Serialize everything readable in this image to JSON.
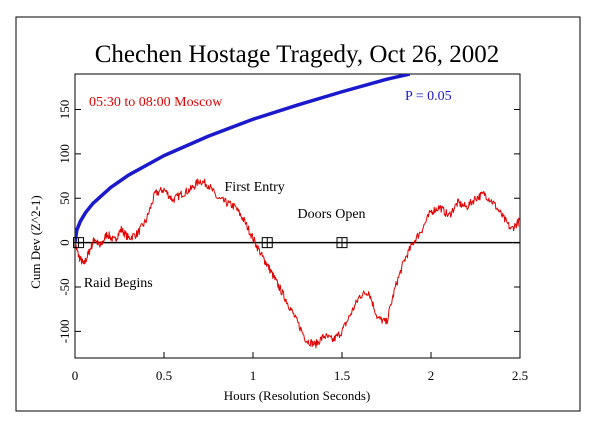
{
  "chart_data": {
    "type": "line",
    "title": "Chechen Hostage Tragedy, Oct 26, 2002",
    "xlabel": "Hours (Resolution Seconds)",
    "ylabel": "Cum Dev (Z^2-1)",
    "xlim": [
      0,
      2.5
    ],
    "ylim": [
      -130,
      190
    ],
    "x_ticks": [
      0,
      0.5,
      1,
      1.5,
      2,
      2.5
    ],
    "x_tick_labels": [
      "0",
      "0.5",
      "1",
      "1.5",
      "2",
      "2.5"
    ],
    "y_ticks": [
      -100,
      -50,
      0,
      50,
      100,
      150
    ],
    "y_tick_labels": [
      "-100",
      "-50",
      "0",
      "50",
      "100",
      "150"
    ],
    "grid": false,
    "subtitle_text": "05:30 to 08:00 Moscow",
    "significance_label": "P = 0.05",
    "series": [
      {
        "color": "#e00000",
        "x": [
          0,
          0.02,
          0.05,
          0.08,
          0.11,
          0.14,
          0.18,
          0.22,
          0.26,
          0.3,
          0.35,
          0.4,
          0.45,
          0.5,
          0.55,
          0.6,
          0.65,
          0.7,
          0.75,
          0.8,
          0.85,
          0.9,
          0.95,
          1.0,
          1.05,
          1.08,
          1.12,
          1.16,
          1.2,
          1.25,
          1.3,
          1.35,
          1.4,
          1.45,
          1.5,
          1.55,
          1.6,
          1.65,
          1.7,
          1.75,
          1.8,
          1.85,
          1.9,
          1.95,
          2.0,
          2.05,
          2.1,
          2.15,
          2.2,
          2.25,
          2.3,
          2.35,
          2.4,
          2.45,
          2.5
        ],
        "y": [
          0,
          -15,
          -25,
          -10,
          5,
          -5,
          10,
          2,
          15,
          5,
          10,
          25,
          55,
          60,
          48,
          55,
          60,
          70,
          65,
          50,
          45,
          40,
          25,
          5,
          -15,
          -25,
          -40,
          -55,
          -70,
          -90,
          -110,
          -115,
          -105,
          -110,
          -100,
          -80,
          -60,
          -55,
          -85,
          -90,
          -50,
          -20,
          0,
          15,
          35,
          40,
          30,
          45,
          40,
          50,
          55,
          45,
          30,
          15,
          25
        ]
      }
    ],
    "significance_curve": {
      "color": "#1a1acc",
      "x": [
        0,
        0.01,
        0.03,
        0.06,
        0.1,
        0.2,
        0.3,
        0.5,
        0.75,
        1.0,
        1.25,
        1.5,
        1.75,
        1.88
      ],
      "y": [
        0,
        14,
        24,
        34,
        44,
        62,
        76,
        98,
        120,
        139,
        155,
        170,
        184,
        190
      ]
    },
    "event_markers": [
      {
        "x": 0.02,
        "y": 0
      },
      {
        "x": 1.08,
        "y": 0
      },
      {
        "x": 1.5,
        "y": 0
      }
    ],
    "annotations": [
      {
        "text": "Raid Begins",
        "x": 0.05,
        "y": -50
      },
      {
        "text": "First Entry",
        "x": 0.84,
        "y": 58
      },
      {
        "text": "Doors Open",
        "x": 1.25,
        "y": 28
      }
    ]
  }
}
